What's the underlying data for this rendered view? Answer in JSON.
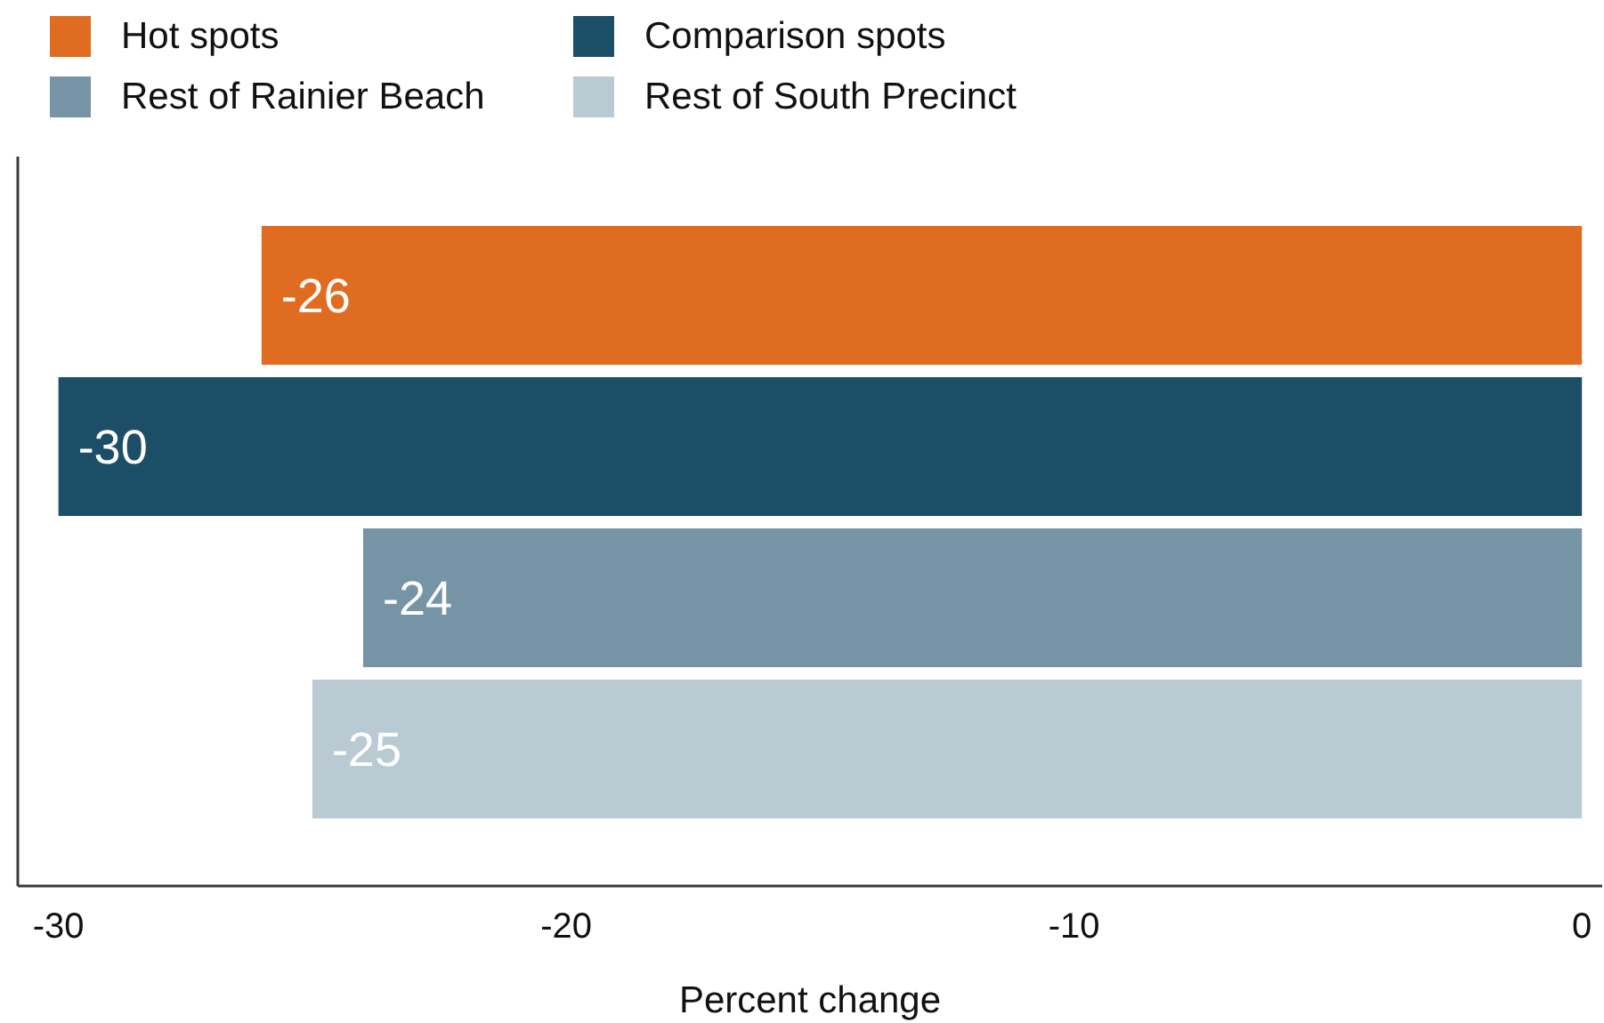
{
  "chart_data": {
    "type": "bar",
    "orientation": "horizontal",
    "xlabel": "Percent change",
    "categories": [
      null
    ],
    "series": [
      {
        "name": "Hot spots",
        "color": "#e06c22",
        "values": [
          -26
        ]
      },
      {
        "name": "Comparison spots",
        "color": "#1c4f67",
        "values": [
          -30
        ]
      },
      {
        "name": "Rest of Rainier Beach",
        "color": "#7594a5",
        "values": [
          -24
        ]
      },
      {
        "name": "Rest of South Precinct",
        "color": "#b9cad2",
        "values": [
          -25
        ]
      }
    ],
    "xlim": [
      -30.8,
      0.4
    ],
    "xticks": [
      -30,
      -20,
      -10,
      0
    ],
    "data_labels": true,
    "legend": "top left"
  }
}
